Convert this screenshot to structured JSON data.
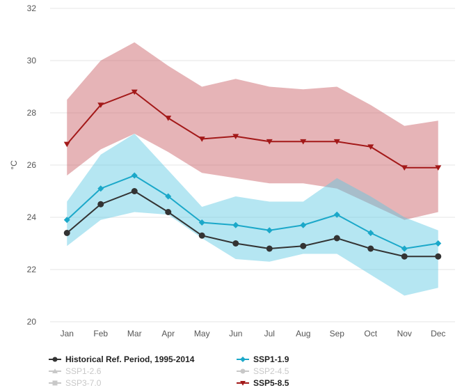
{
  "chart_data": {
    "type": "line",
    "ylabel": "°C",
    "ylim": [
      20,
      32
    ],
    "yticks": [
      20,
      22,
      24,
      26,
      28,
      30,
      32
    ],
    "categories": [
      "Jan",
      "Feb",
      "Mar",
      "Apr",
      "May",
      "Jun",
      "Jul",
      "Aug",
      "Sep",
      "Oct",
      "Nov",
      "Dec"
    ],
    "grid": true,
    "legend_position": "bottom-left",
    "bands": [
      {
        "name": "SSP5-8.5 range",
        "color": "#c8595f",
        "opacity": 0.45,
        "upper": [
          28.5,
          30.0,
          30.7,
          29.8,
          29.0,
          29.3,
          29.0,
          28.9,
          29.0,
          28.3,
          27.5,
          27.7
        ],
        "lower": [
          25.6,
          26.6,
          27.2,
          26.5,
          25.7,
          25.5,
          25.3,
          25.3,
          25.1,
          24.5,
          23.9,
          24.2
        ]
      },
      {
        "name": "SSP1-1.9 range",
        "color": "#5bc8e3",
        "opacity": 0.45,
        "upper": [
          24.6,
          26.4,
          27.2,
          25.8,
          24.4,
          24.8,
          24.6,
          24.6,
          25.5,
          24.8,
          24.0,
          23.5
        ],
        "lower": [
          22.9,
          23.9,
          24.2,
          24.1,
          23.2,
          22.4,
          22.3,
          22.6,
          22.6,
          21.8,
          21.0,
          21.3
        ]
      }
    ],
    "series": [
      {
        "name": "Historical Ref. Period, 1995-2014",
        "color": "#333333",
        "marker": "circle",
        "values": [
          23.4,
          24.5,
          25.0,
          24.2,
          23.3,
          23.0,
          22.8,
          22.9,
          23.2,
          22.8,
          22.5,
          22.5
        ]
      },
      {
        "name": "SSP1-1.9",
        "color": "#1ba8c9",
        "marker": "diamond",
        "values": [
          23.9,
          25.1,
          25.6,
          24.8,
          23.8,
          23.7,
          23.5,
          23.7,
          24.1,
          23.4,
          22.8,
          23.0
        ]
      },
      {
        "name": "SSP5-8.5",
        "color": "#a31919",
        "marker": "triangle-down",
        "values": [
          26.8,
          28.3,
          28.8,
          27.8,
          27.0,
          27.1,
          26.9,
          26.9,
          26.9,
          26.7,
          25.9,
          25.9
        ]
      }
    ]
  },
  "legend": [
    {
      "label": "Historical Ref. Period, 1995-2014",
      "color": "#333333",
      "marker": "circle",
      "active": true
    },
    {
      "label": "SSP1-1.9",
      "color": "#1ba8c9",
      "marker": "diamond",
      "active": true
    },
    {
      "label": "SSP1-2.6",
      "color": "#c8c8c8",
      "marker": "triangle-up",
      "active": false
    },
    {
      "label": "SSP2-4.5",
      "color": "#c8c8c8",
      "marker": "circle",
      "active": false
    },
    {
      "label": "SSP3-7.0",
      "color": "#c8c8c8",
      "marker": "square",
      "active": false
    },
    {
      "label": "SSP5-8.5",
      "color": "#a31919",
      "marker": "triangle-down",
      "active": true
    }
  ]
}
